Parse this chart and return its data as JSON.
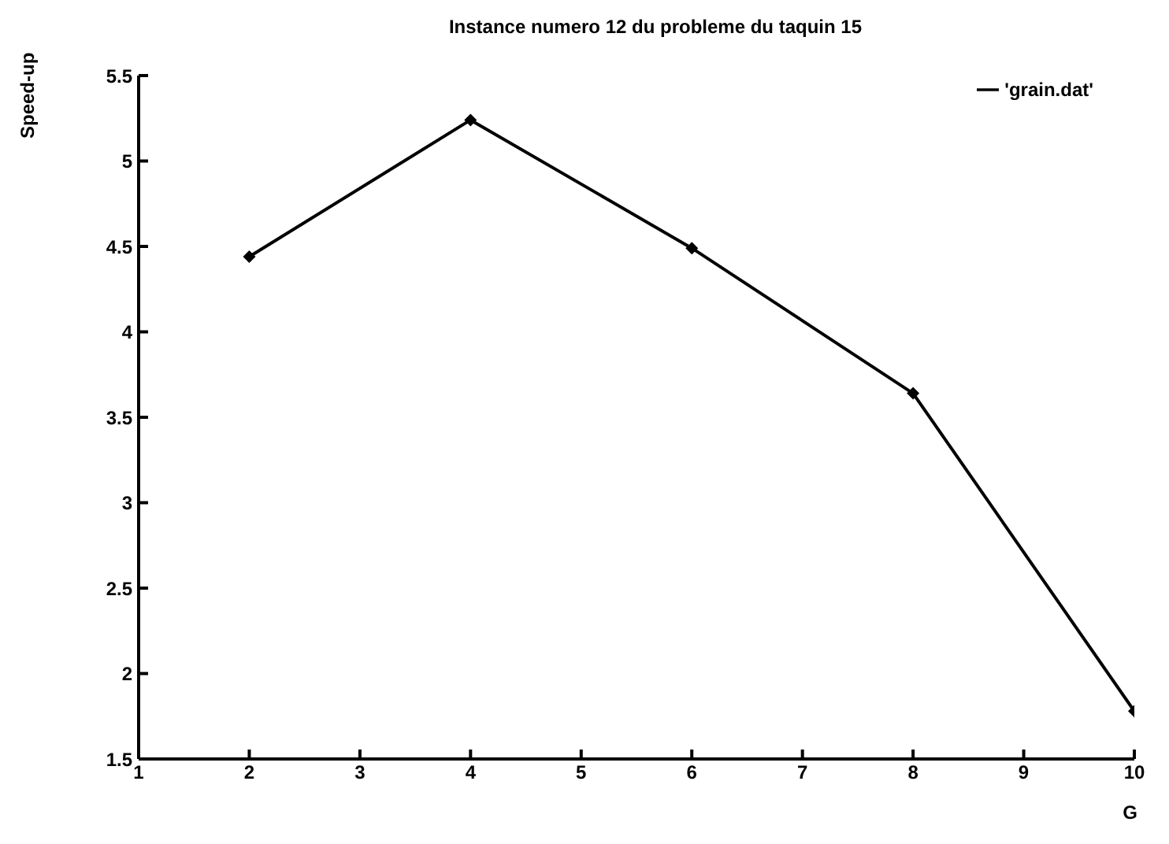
{
  "chart_data": {
    "type": "line",
    "title": "Instance numero 12 du probleme du taquin 15",
    "xlabel": "G",
    "ylabel": "Speed-up",
    "x": [
      2,
      4,
      6,
      8,
      10
    ],
    "series": [
      {
        "name": "'grain.dat'",
        "color": "#000000",
        "values": [
          4.44,
          5.24,
          4.49,
          3.64,
          1.78
        ]
      }
    ],
    "xlim": [
      1,
      10
    ],
    "xticks": [
      1,
      2,
      3,
      4,
      5,
      6,
      7,
      8,
      9,
      10
    ],
    "ylim": [
      1.5,
      5.5
    ],
    "yticks": [
      1.5,
      2,
      2.5,
      3,
      3.5,
      4,
      4.5,
      5,
      5.5
    ],
    "marker": "diamond",
    "legend": "top right",
    "grid": false
  }
}
